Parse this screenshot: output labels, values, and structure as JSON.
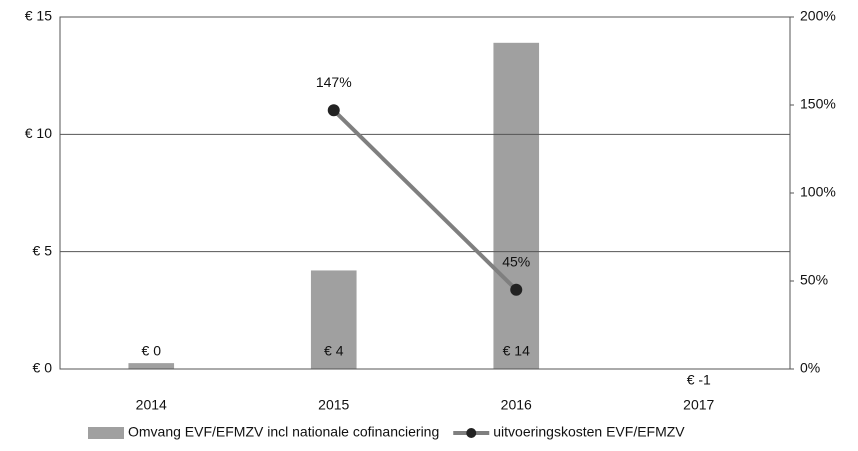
{
  "chart_data": {
    "type": "bar",
    "categories": [
      "2014",
      "2015",
      "2016",
      "2017"
    ],
    "series": [
      {
        "name": "Omvang EVF/EFMZV incl nationale cofinanciering",
        "type": "bar",
        "color": "#a0a0a0",
        "values": [
          0.25,
          4.2,
          13.9,
          -1
        ],
        "value_labels": [
          "€ 0",
          "€ 4",
          "€ 14",
          "€ -1"
        ]
      },
      {
        "name": "uitvoeringskosten EVF/EFMZV",
        "type": "line",
        "axis": "y2",
        "color": "#7f7f7f",
        "marker_color": "#222222",
        "values": [
          null,
          147,
          45,
          null
        ],
        "value_labels": [
          null,
          "147%",
          "45%",
          null
        ]
      }
    ],
    "ylim": [
      0,
      15
    ],
    "yticks": [
      {
        "value": 0,
        "label": "€ 0"
      },
      {
        "value": 5,
        "label": "€ 5"
      },
      {
        "value": 10,
        "label": "€ 10"
      },
      {
        "value": 15,
        "label": "€ 15"
      }
    ],
    "y2lim": [
      0,
      200
    ],
    "y2ticks": [
      {
        "value": 0,
        "label": "0%"
      },
      {
        "value": 50,
        "label": "50%"
      },
      {
        "value": 100,
        "label": "100%"
      },
      {
        "value": 150,
        "label": "150%"
      },
      {
        "value": 200,
        "label": "200%"
      }
    ],
    "grid": true,
    "legend": "bottom"
  }
}
